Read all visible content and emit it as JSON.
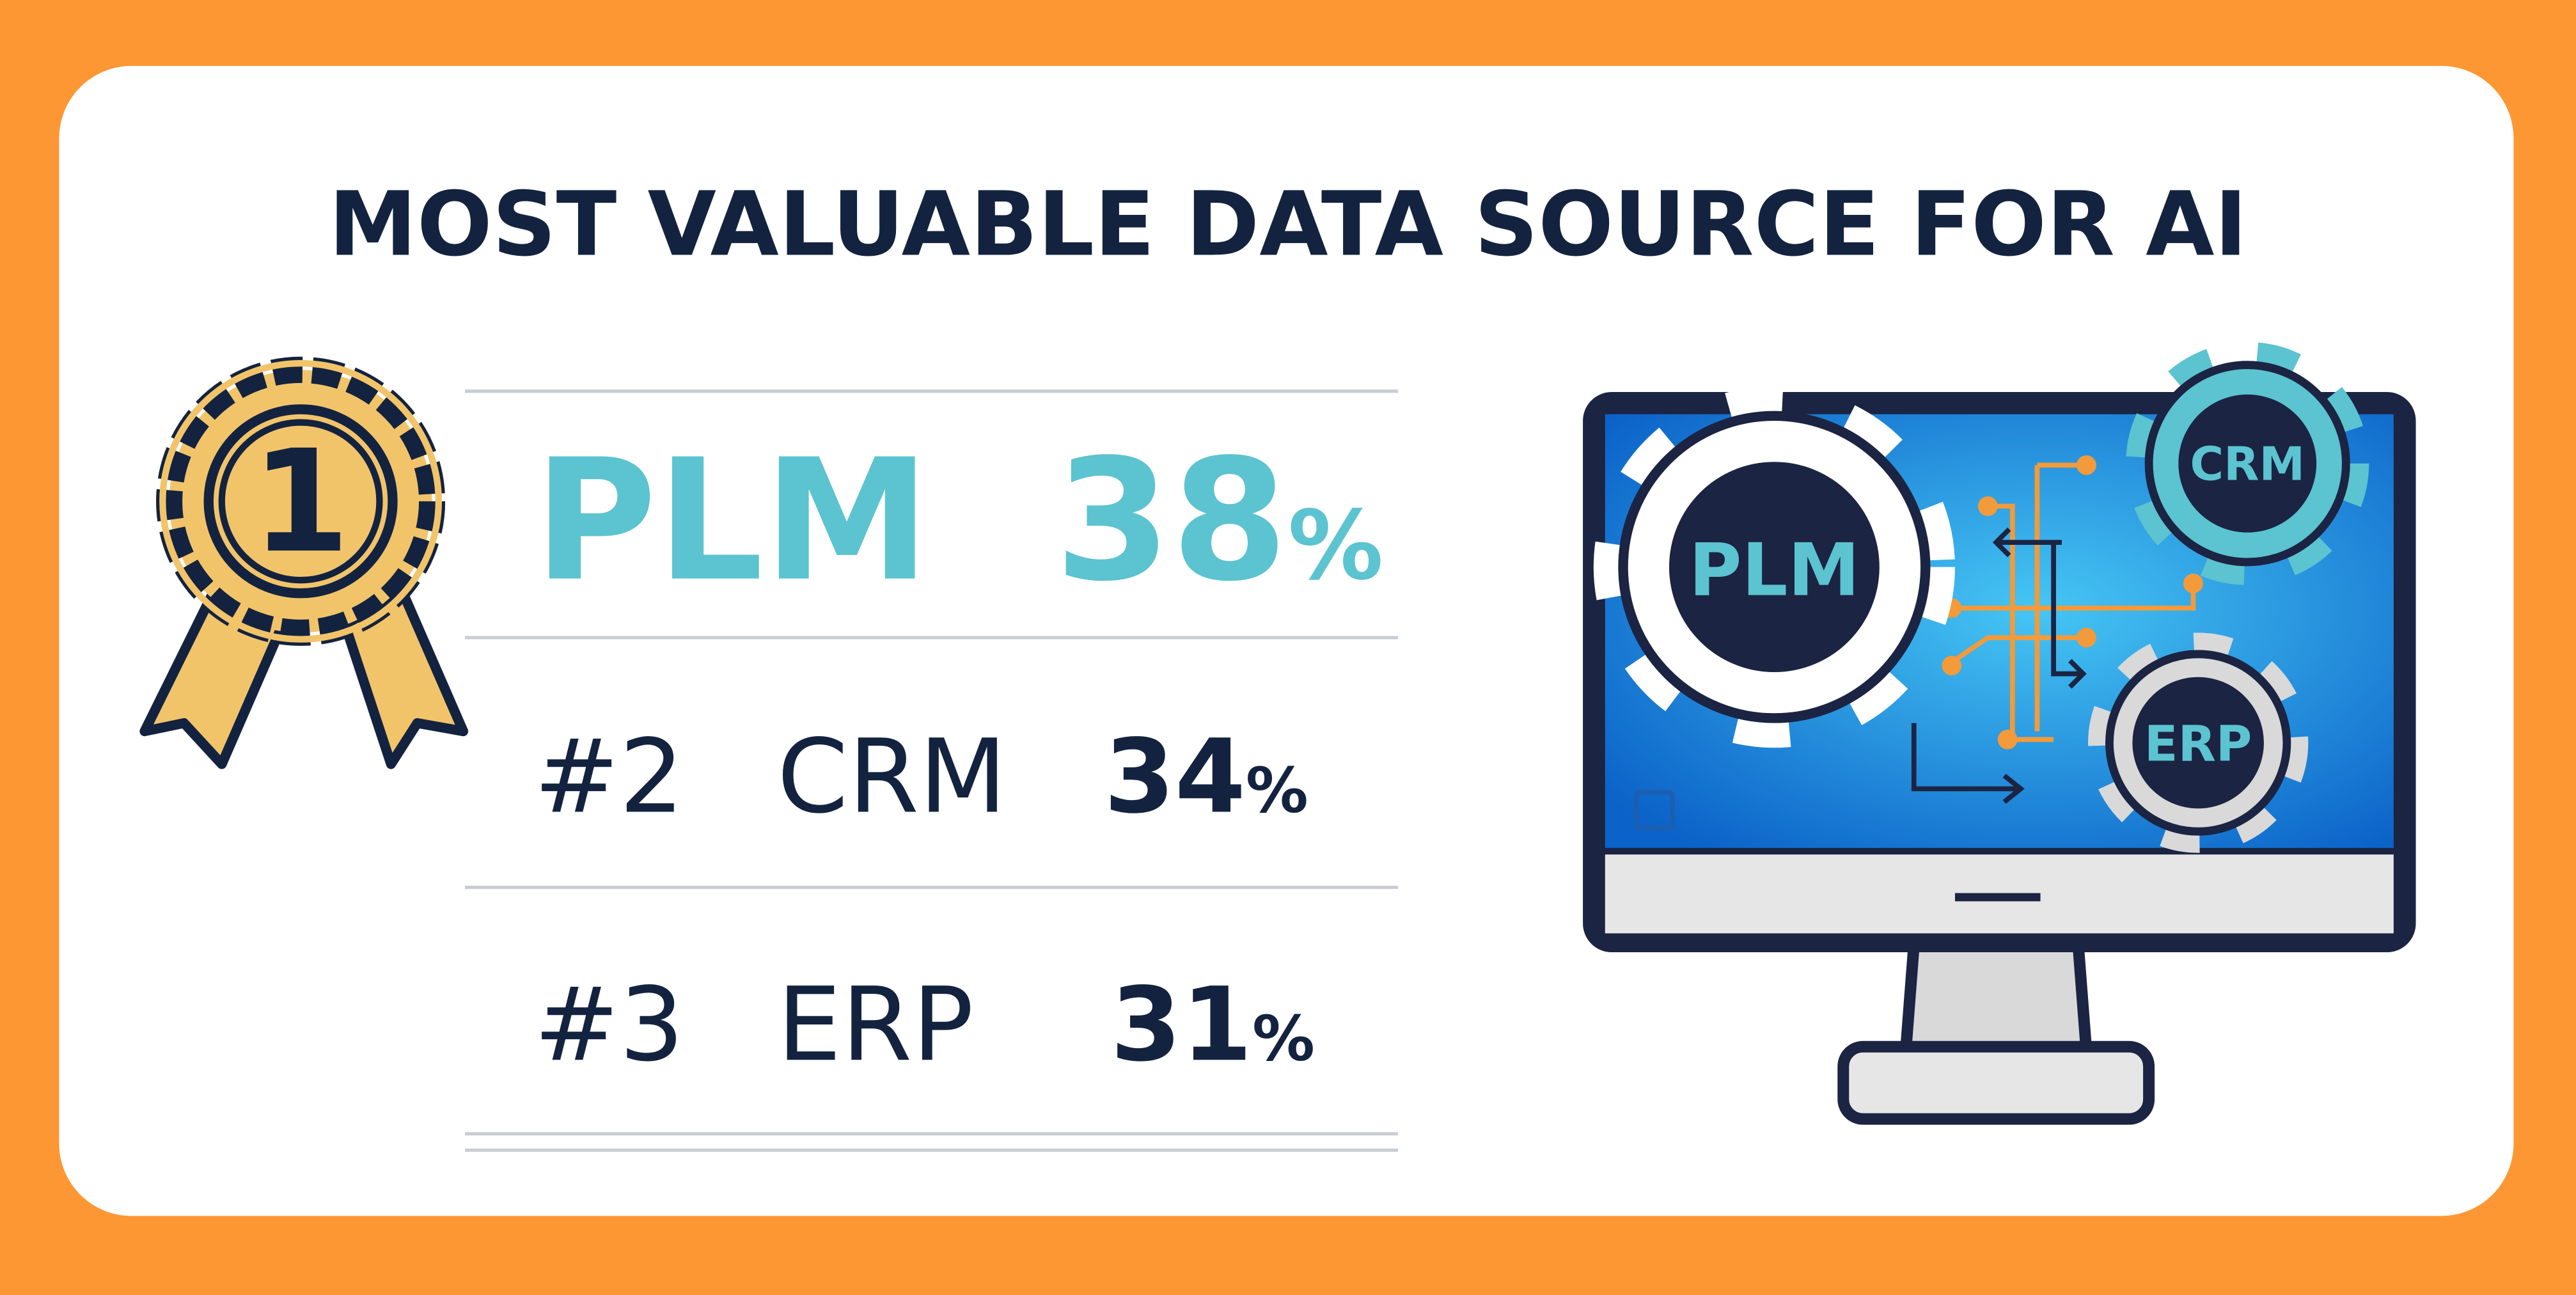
{
  "title": "MOST VALUABLE DATA SOURCE FOR AI",
  "badge": "1",
  "ranking": [
    {
      "rank": null,
      "label": "PLM",
      "value": "38",
      "unit": "%"
    },
    {
      "rank": "#2",
      "label": "CRM",
      "value": "34",
      "unit": "%"
    },
    {
      "rank": "#3",
      "label": "ERP",
      "value": "31",
      "unit": "%"
    }
  ],
  "gears": [
    {
      "label": "PLM"
    },
    {
      "label": "CRM"
    },
    {
      "label": "ERP"
    }
  ]
}
